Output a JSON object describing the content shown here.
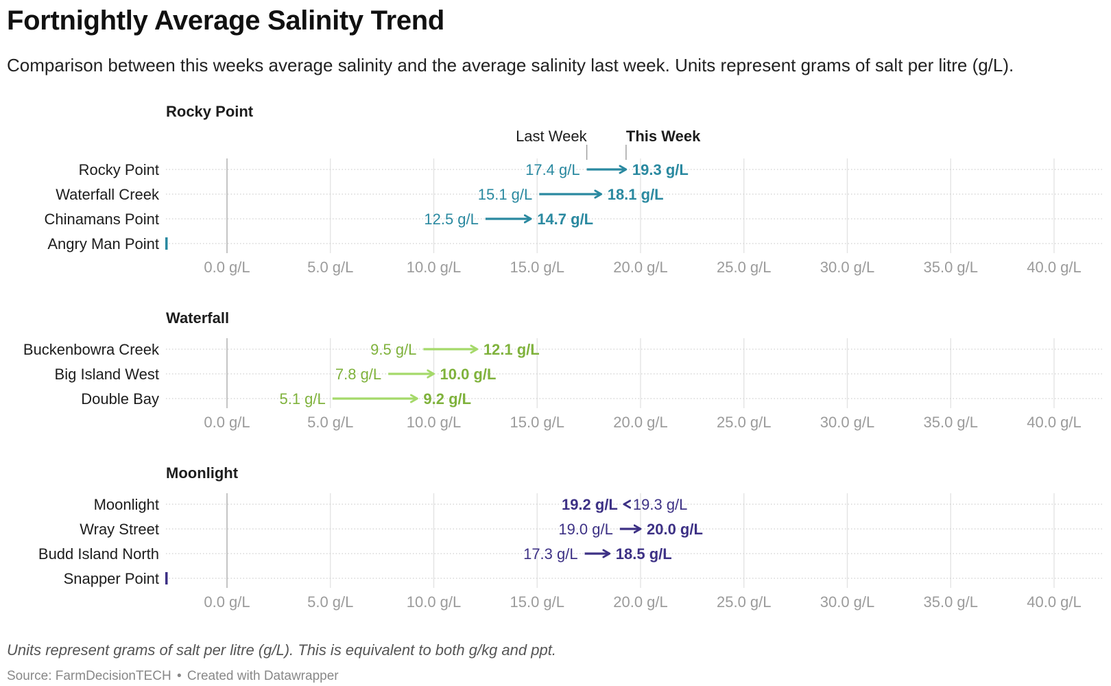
{
  "title": "Fortnightly Average Salinity Trend",
  "subtitle": "Comparison between this weeks average salinity and the average salinity last week. Units represent grams of salt per litre (g/L).",
  "note": "Units represent grams of salt per litre (g/L). This is equivalent to both g/kg and ppt.",
  "source": {
    "label": "Source: FarmDecisionTECH",
    "separator": "•",
    "credit": "Created with Datawrapper"
  },
  "legend": {
    "from_label": "Last Week",
    "to_label": "This Week"
  },
  "colors": {
    "Rocky Point": "#2a89a0",
    "Waterfall": "#a5d96a",
    "Waterfall_text": "#7fb23c",
    "Moonlight": "#3d3185"
  },
  "chart_data": [
    {
      "type": "arrow-dot",
      "title": "Rocky Point",
      "x_unit": "g/L",
      "xlim": [
        0,
        40
      ],
      "x_ticks": [
        "0.0 g/L",
        "5.0 g/L",
        "10.0 g/L",
        "15.0 g/L",
        "20.0 g/L",
        "25.0 g/L",
        "30.0 g/L",
        "35.0 g/L",
        "40.0 g/L"
      ],
      "rows": [
        {
          "name": "Rocky Point",
          "last_week": 17.4,
          "this_week": 19.3,
          "last_label": "17.4 g/L",
          "this_label": "19.3 g/L"
        },
        {
          "name": "Waterfall Creek",
          "last_week": 15.1,
          "this_week": 18.1,
          "last_label": "15.1 g/L",
          "this_label": "18.1 g/L"
        },
        {
          "name": "Chinamans Point",
          "last_week": 12.5,
          "this_week": 14.7,
          "last_label": "12.5 g/L",
          "this_label": "14.7 g/L"
        },
        {
          "name": "Angry Man Point",
          "last_week": null,
          "this_week": null,
          "last_label": "",
          "this_label": ""
        }
      ]
    },
    {
      "type": "arrow-dot",
      "title": "Waterfall",
      "x_unit": "g/L",
      "xlim": [
        0,
        40
      ],
      "x_ticks": [
        "0.0 g/L",
        "5.0 g/L",
        "10.0 g/L",
        "15.0 g/L",
        "20.0 g/L",
        "25.0 g/L",
        "30.0 g/L",
        "35.0 g/L",
        "40.0 g/L"
      ],
      "rows": [
        {
          "name": "Buckenbowra Creek",
          "last_week": 9.5,
          "this_week": 12.1,
          "last_label": "9.5 g/L",
          "this_label": "12.1 g/L"
        },
        {
          "name": "Big Island West",
          "last_week": 7.8,
          "this_week": 10.0,
          "last_label": "7.8 g/L",
          "this_label": "10.0 g/L"
        },
        {
          "name": "Double Bay",
          "last_week": 5.1,
          "this_week": 9.2,
          "last_label": "5.1 g/L",
          "this_label": "9.2 g/L"
        }
      ]
    },
    {
      "type": "arrow-dot",
      "title": "Moonlight",
      "x_unit": "g/L",
      "xlim": [
        0,
        40
      ],
      "x_ticks": [
        "0.0 g/L",
        "5.0 g/L",
        "10.0 g/L",
        "15.0 g/L",
        "20.0 g/L",
        "25.0 g/L",
        "30.0 g/L",
        "35.0 g/L",
        "40.0 g/L"
      ],
      "rows": [
        {
          "name": "Moonlight",
          "last_week": 19.3,
          "this_week": 19.2,
          "last_label": "19.3 g/L",
          "this_label": "19.2 g/L"
        },
        {
          "name": "Wray Street",
          "last_week": 19.0,
          "this_week": 20.0,
          "last_label": "19.0 g/L",
          "this_label": "20.0 g/L"
        },
        {
          "name": "Budd Island North",
          "last_week": 17.3,
          "this_week": 18.5,
          "last_label": "17.3 g/L",
          "this_label": "18.5 g/L"
        },
        {
          "name": "Snapper Point",
          "last_week": null,
          "this_week": null,
          "last_label": "",
          "this_label": ""
        }
      ]
    }
  ]
}
